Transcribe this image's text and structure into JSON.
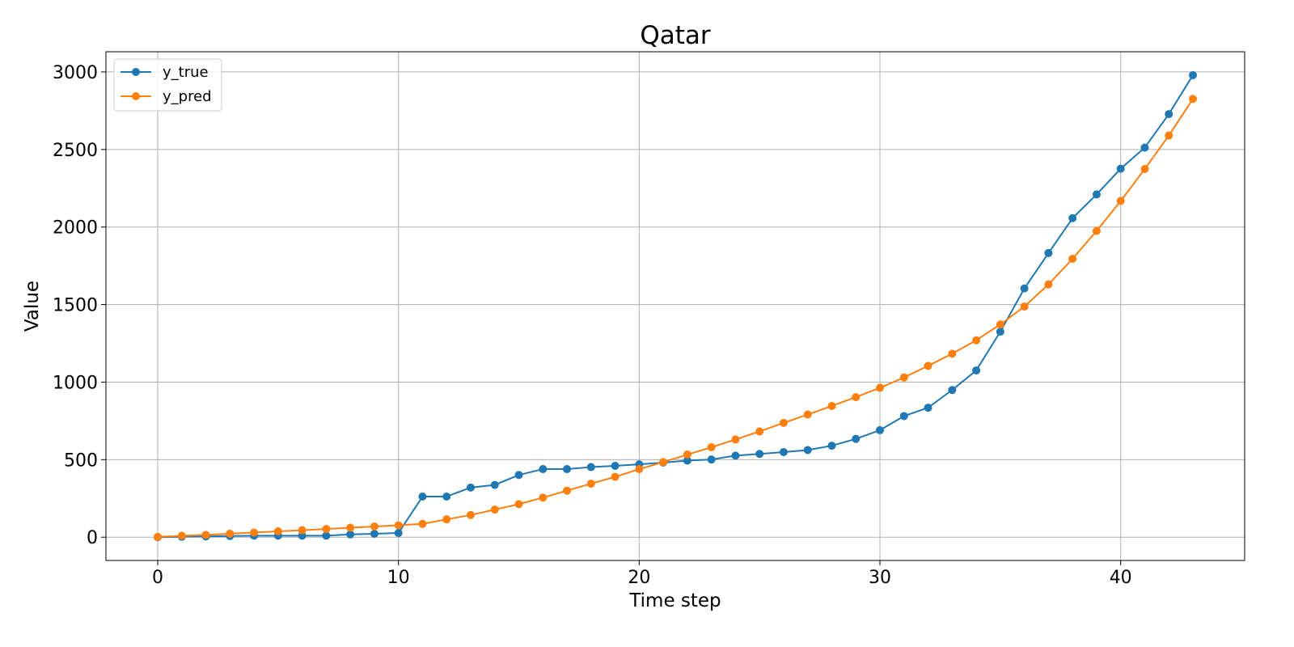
{
  "chart_data": {
    "type": "line",
    "title": "Qatar",
    "xlabel": "Time step",
    "ylabel": "Value",
    "xlim": [
      -2.15,
      45.15
    ],
    "ylim": [
      -150,
      3130
    ],
    "xticks": [
      0,
      10,
      20,
      30,
      40
    ],
    "yticks": [
      0,
      500,
      1000,
      1500,
      2000,
      2500,
      3000
    ],
    "grid": true,
    "legend_position": "top-left",
    "x": [
      0,
      1,
      2,
      3,
      4,
      5,
      6,
      7,
      8,
      9,
      10,
      11,
      12,
      13,
      14,
      15,
      16,
      17,
      18,
      19,
      20,
      21,
      22,
      23,
      24,
      25,
      26,
      27,
      28,
      29,
      30,
      31,
      32,
      33,
      34,
      35,
      36,
      37,
      38,
      39,
      40,
      41,
      42,
      43
    ],
    "series": [
      {
        "name": "y_true",
        "color": "#1f77b4",
        "values": [
          0,
          3,
          5,
          8,
          10,
          10,
          10,
          10,
          18,
          22,
          27,
          262,
          262,
          320,
          337,
          401,
          439,
          439,
          452,
          460,
          470,
          481,
          494,
          501,
          526,
          537,
          549,
          562,
          590,
          634,
          690,
          781,
          835,
          949,
          1075,
          1325,
          1604,
          1832,
          2057,
          2210,
          2376,
          2512,
          2728,
          2979
        ]
      },
      {
        "name": "y_pred",
        "color": "#ff7f0e",
        "values": [
          2,
          9,
          15,
          23,
          30,
          38,
          45,
          53,
          61,
          69,
          77,
          86,
          115,
          143,
          178,
          213,
          255,
          300,
          345,
          389,
          439,
          484,
          533,
          580,
          630,
          682,
          737,
          791,
          846,
          903,
          963,
          1030,
          1105,
          1183,
          1270,
          1372,
          1487,
          1630,
          1795,
          1975,
          2168,
          2374,
          2590,
          2826
        ]
      }
    ]
  }
}
